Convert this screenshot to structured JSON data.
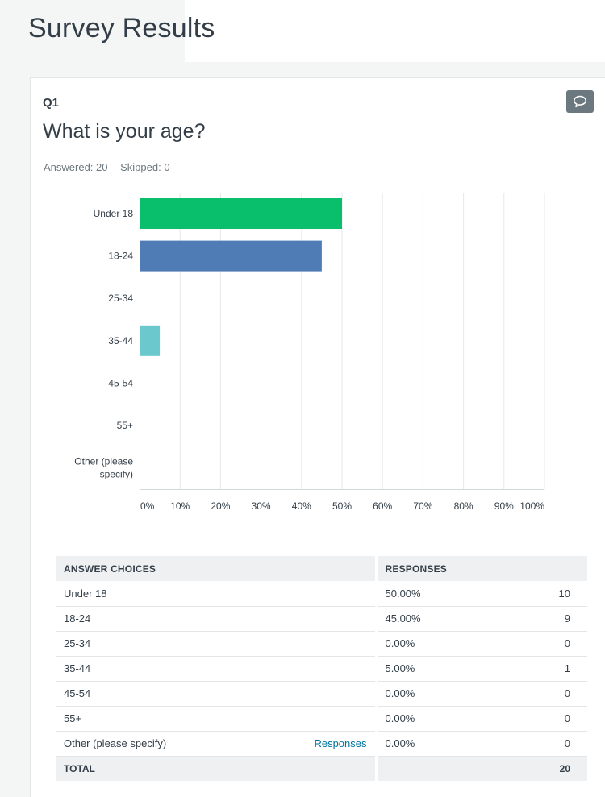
{
  "page": {
    "title": "Survey Results"
  },
  "question": {
    "number": "Q1",
    "text": "What is your age?",
    "answered": "Answered: 20",
    "skipped": "Skipped: 0",
    "comment_icon": "speech-bubble-icon"
  },
  "chart_data": {
    "type": "bar",
    "orientation": "horizontal",
    "categories": [
      "Under 18",
      "18-24",
      "25-34",
      "35-44",
      "45-54",
      "55+",
      "Other (please specify)"
    ],
    "values": [
      50,
      45,
      0,
      5,
      0,
      0,
      0
    ],
    "colors": [
      "#0abf6b",
      "#507cb6",
      "#6bc8cd",
      "#6bc8cd",
      "#6bc8cd",
      "#6bc8cd",
      "#6bc8cd"
    ],
    "xlim": [
      0,
      100
    ],
    "xticks": [
      "0%",
      "10%",
      "20%",
      "30%",
      "40%",
      "50%",
      "60%",
      "70%",
      "80%",
      "90%",
      "100%"
    ],
    "grid": true
  },
  "table": {
    "headers": {
      "choices": "ANSWER CHOICES",
      "responses": "RESPONSES"
    },
    "rows": [
      {
        "choice": "Under 18",
        "link": "",
        "percent": "50.00%",
        "count": "10"
      },
      {
        "choice": "18-24",
        "link": "",
        "percent": "45.00%",
        "count": "9"
      },
      {
        "choice": "25-34",
        "link": "",
        "percent": "0.00%",
        "count": "0"
      },
      {
        "choice": "35-44",
        "link": "",
        "percent": "5.00%",
        "count": "1"
      },
      {
        "choice": "45-54",
        "link": "",
        "percent": "0.00%",
        "count": "0"
      },
      {
        "choice": "55+",
        "link": "",
        "percent": "0.00%",
        "count": "0"
      },
      {
        "choice": "Other (please specify)",
        "link": "Responses",
        "percent": "0.00%",
        "count": "0"
      }
    ],
    "total": {
      "label": "TOTAL",
      "count": "20"
    }
  }
}
